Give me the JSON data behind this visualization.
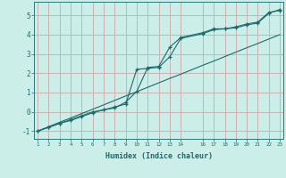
{
  "xlabel": "Humidex (Indice chaleur)",
  "bg_color": "#cceee8",
  "grid_color": "#d0a8a8",
  "line_color": "#1a6b6b",
  "xlim": [
    0.7,
    23.3
  ],
  "ylim": [
    -1.4,
    5.7
  ],
  "xticks": [
    1,
    2,
    3,
    4,
    5,
    6,
    7,
    8,
    9,
    10,
    11,
    12,
    13,
    14,
    16,
    17,
    18,
    19,
    20,
    21,
    22,
    23
  ],
  "yticks": [
    -1,
    0,
    1,
    2,
    3,
    4,
    5
  ],
  "x_pts": [
    1,
    2,
    3,
    4,
    5,
    6,
    7,
    8,
    9,
    10,
    11,
    12,
    13,
    14,
    16,
    17,
    18,
    19,
    20,
    21,
    22,
    23
  ],
  "y_curve1": [
    -1.0,
    -0.8,
    -0.6,
    -0.4,
    -0.2,
    -0.0,
    0.1,
    0.25,
    0.4,
    2.2,
    2.25,
    2.3,
    2.85,
    3.8,
    4.05,
    4.25,
    4.3,
    4.35,
    4.5,
    4.6,
    5.1,
    5.3
  ],
  "y_curve2": [
    -1.0,
    -0.8,
    -0.6,
    -0.45,
    -0.25,
    -0.05,
    0.1,
    0.2,
    0.5,
    1.05,
    2.3,
    2.35,
    3.35,
    3.85,
    4.1,
    4.3,
    4.3,
    4.4,
    4.55,
    4.65,
    5.15,
    5.25
  ],
  "y_straight": [
    -1.0,
    -0.77,
    -0.54,
    -0.32,
    -0.09,
    0.13,
    0.36,
    0.59,
    0.82,
    1.04,
    1.27,
    1.5,
    1.73,
    1.95,
    2.41,
    2.63,
    2.86,
    3.09,
    3.32,
    3.54,
    3.77,
    4.0
  ]
}
